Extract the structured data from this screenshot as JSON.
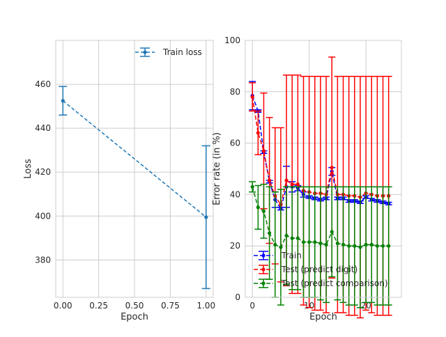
{
  "colors": {
    "loss": "#1f77b4",
    "train": "#0000ff",
    "test_digit": "#ff0000",
    "test_comparison": "#008000",
    "grid": "#cccccc",
    "spine": "#cccccc"
  },
  "chart_data": [
    {
      "type": "line",
      "errorbars": true,
      "xlabel": "Epoch",
      "ylabel": "Loss",
      "xlim": [
        -0.05,
        1.05
      ],
      "ylim": [
        363,
        480
      ],
      "x_ticks": [
        "0.00",
        "0.25",
        "0.50",
        "0.75",
        "1.00"
      ],
      "y_ticks": [
        "380",
        "400",
        "420",
        "440",
        "460"
      ],
      "grid": true,
      "legend_position": "top-right",
      "series": [
        {
          "name": "Train loss",
          "x": [
            0,
            1
          ],
          "y": [
            452.5,
            399.5
          ],
          "err": [
            6.5,
            32.5
          ]
        }
      ]
    },
    {
      "type": "line",
      "errorbars": true,
      "xlabel": "Epoch",
      "ylabel": "Error rate (in %)",
      "xlim": [
        -1.25,
        26.25
      ],
      "ylim": [
        0,
        100
      ],
      "x_ticks": [
        "0",
        "10",
        "20"
      ],
      "y_ticks": [
        "0",
        "20",
        "40",
        "60",
        "80",
        "100"
      ],
      "grid": true,
      "legend_position": "lower-left",
      "series": [
        {
          "name": "Train",
          "x": [
            0,
            1,
            2,
            3,
            4,
            5,
            6,
            7,
            8,
            9,
            10,
            11,
            12,
            13,
            14,
            15,
            16,
            17,
            18,
            19,
            20,
            21,
            22,
            23,
            24
          ],
          "y": [
            78.5,
            72.5,
            56.5,
            45,
            38,
            34.5,
            43,
            43,
            42.5,
            40,
            39,
            38.5,
            38,
            38.5,
            49,
            38.5,
            38.5,
            37.5,
            37.5,
            37,
            39,
            38,
            37.5,
            37,
            36.5
          ],
          "err": [
            5.5,
            0.5,
            0.5,
            0.5,
            3,
            0.5,
            8,
            2,
            1,
            1,
            0.5,
            0.5,
            0.5,
            0.5,
            1.5,
            0.5,
            0.5,
            0.5,
            0.5,
            0.5,
            0.5,
            0.5,
            0.5,
            0.5,
            0.5
          ]
        },
        {
          "name": "Test (predict digit)",
          "x": [
            0,
            1,
            2,
            3,
            4,
            5,
            6,
            7,
            8,
            9,
            10,
            11,
            12,
            13,
            14,
            15,
            16,
            17,
            18,
            19,
            20,
            21,
            22,
            23,
            24
          ],
          "y": [
            78,
            64,
            57,
            45.5,
            39.5,
            36,
            45.5,
            44,
            44,
            41.5,
            41,
            40.5,
            40.5,
            40,
            50.5,
            40,
            40,
            39.5,
            39.5,
            39,
            40.5,
            40,
            39.5,
            39.5,
            39.5
          ],
          "err": [
            5.5,
            8.5,
            22.5,
            24.5,
            26.5,
            30,
            41,
            42.5,
            42.5,
            44.5,
            45,
            45.5,
            45.5,
            46,
            43,
            46,
            46,
            46.5,
            46.5,
            47,
            45.5,
            46,
            46.5,
            46.5,
            46.5
          ]
        },
        {
          "name": "Test (predict comparison)",
          "x": [
            0,
            1,
            2,
            3,
            4,
            5,
            6,
            7,
            8,
            9,
            10,
            11,
            12,
            13,
            14,
            15,
            16,
            17,
            18,
            19,
            20,
            21,
            22,
            23,
            24
          ],
          "y": [
            43,
            35,
            33.5,
            25,
            20.5,
            19.5,
            24,
            23,
            23,
            21.5,
            21.5,
            21.5,
            21,
            20.5,
            25.5,
            21,
            20.5,
            20,
            20,
            19.5,
            20.5,
            20.5,
            20,
            20,
            20
          ],
          "err": [
            2,
            8.5,
            10.5,
            18,
            20.5,
            22.5,
            19,
            20,
            20,
            21.5,
            21.5,
            21.5,
            22,
            22.5,
            17.5,
            22,
            22.5,
            23,
            23,
            23.5,
            22.5,
            22.5,
            23,
            23,
            23
          ]
        }
      ]
    }
  ]
}
